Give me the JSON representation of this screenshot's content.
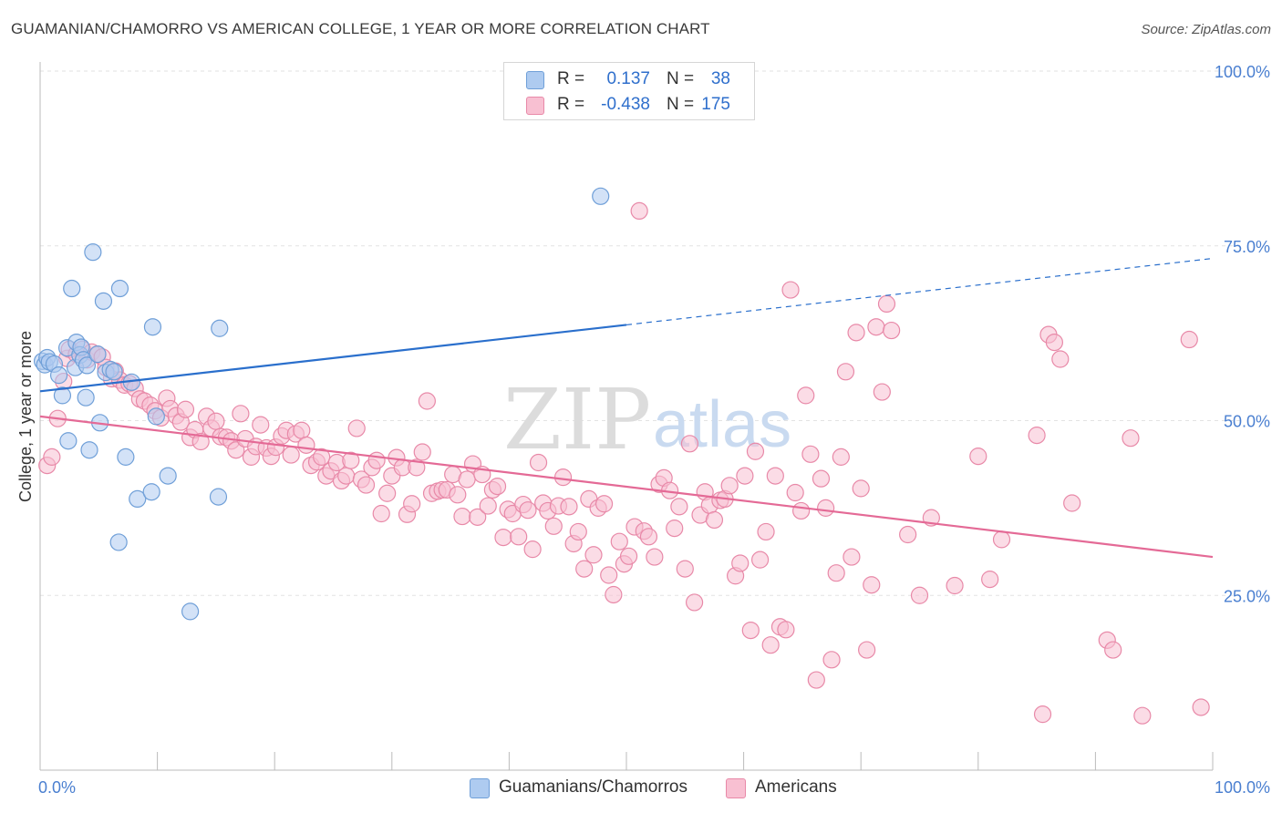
{
  "title": "GUAMANIAN/CHAMORRO VS AMERICAN COLLEGE, 1 YEAR OR MORE CORRELATION CHART",
  "source": "Source: ZipAtlas.com",
  "watermark": {
    "zip": "ZIP",
    "atlas": "atlas"
  },
  "legend_top": [
    {
      "r_label": "R =",
      "r_value": "0.137",
      "n_label": "N =",
      "n_value": "38",
      "color": "#aecbf0",
      "border": "#6f9fd8"
    },
    {
      "r_label": "R =",
      "r_value": "-0.438",
      "n_label": "N =",
      "n_value": "175",
      "color": "#f8c0d2",
      "border": "#e889a8"
    }
  ],
  "legend_bottom": [
    {
      "label": "Guamanians/Chamorros",
      "color": "#aecbf0",
      "border": "#6f9fd8"
    },
    {
      "label": "Americans",
      "color": "#f8c0d2",
      "border": "#e889a8"
    }
  ],
  "chart_data": {
    "type": "scatter",
    "ylabel": "College, 1 year or more",
    "xlim": [
      0,
      100
    ],
    "ylim": [
      0,
      100
    ],
    "x_tick_labels": {
      "left": "0.0%",
      "right": "100.0%"
    },
    "y_tick_labels": [
      {
        "value": 100,
        "label": "100.0%"
      },
      {
        "value": 75,
        "label": "75.0%"
      },
      {
        "value": 50,
        "label": "50.0%"
      },
      {
        "value": 25,
        "label": "25.0%"
      }
    ],
    "grid": true,
    "series": [
      {
        "name": "Guamanians/Chamorros",
        "color": "#6f9fd8",
        "fill": "#aecbf0",
        "line_color": "#2a6fcc",
        "trend": {
          "x0": 0,
          "y0": 54.2,
          "x1": 50,
          "y1": 63.7,
          "dash_to_x": 100,
          "dash_to_y": 73.2
        },
        "points": [
          [
            0.2,
            58.5
          ],
          [
            0.4,
            58.0
          ],
          [
            0.6,
            59.0
          ],
          [
            0.8,
            58.4
          ],
          [
            1.2,
            58.1
          ],
          [
            1.6,
            56.5
          ],
          [
            1.9,
            53.6
          ],
          [
            2.3,
            60.4
          ],
          [
            2.4,
            47.1
          ],
          [
            2.7,
            68.9
          ],
          [
            3.0,
            57.6
          ],
          [
            3.1,
            61.2
          ],
          [
            3.4,
            59.4
          ],
          [
            3.5,
            60.5
          ],
          [
            3.7,
            58.7
          ],
          [
            3.9,
            53.3
          ],
          [
            4.0,
            57.9
          ],
          [
            4.2,
            45.8
          ],
          [
            4.5,
            74.1
          ],
          [
            4.9,
            59.5
          ],
          [
            5.1,
            49.7
          ],
          [
            5.4,
            67.1
          ],
          [
            5.6,
            56.9
          ],
          [
            6.0,
            57.3
          ],
          [
            6.3,
            57.0
          ],
          [
            6.7,
            32.6
          ],
          [
            6.8,
            68.9
          ],
          [
            7.3,
            44.8
          ],
          [
            7.8,
            55.5
          ],
          [
            8.3,
            38.8
          ],
          [
            9.5,
            39.8
          ],
          [
            9.6,
            63.4
          ],
          [
            9.9,
            50.6
          ],
          [
            10.9,
            42.1
          ],
          [
            12.8,
            22.7
          ],
          [
            15.2,
            39.1
          ],
          [
            15.3,
            63.2
          ],
          [
            47.8,
            82.1
          ]
        ]
      },
      {
        "name": "Americans",
        "color": "#e889a8",
        "fill": "#f8c0d2",
        "line_color": "#e46a96",
        "trend": {
          "x0": 0,
          "y0": 50.6,
          "x1": 100,
          "y1": 30.5
        },
        "points": [
          [
            0.6,
            43.6
          ],
          [
            1.0,
            44.8
          ],
          [
            1.5,
            50.3
          ],
          [
            2.0,
            55.6
          ],
          [
            2.3,
            58.9
          ],
          [
            2.5,
            60.2
          ],
          [
            3.1,
            59.5
          ],
          [
            3.6,
            60.2
          ],
          [
            4.0,
            58.7
          ],
          [
            4.4,
            59.8
          ],
          [
            4.9,
            59.5
          ],
          [
            5.3,
            59.1
          ],
          [
            5.6,
            57.6
          ],
          [
            6.1,
            56.0
          ],
          [
            6.4,
            57.1
          ],
          [
            6.8,
            55.8
          ],
          [
            7.2,
            55.1
          ],
          [
            7.6,
            55.3
          ],
          [
            8.1,
            54.6
          ],
          [
            8.5,
            53.1
          ],
          [
            8.9,
            52.8
          ],
          [
            9.4,
            52.2
          ],
          [
            9.8,
            51.4
          ],
          [
            10.3,
            50.4
          ],
          [
            10.8,
            53.2
          ],
          [
            11.1,
            51.7
          ],
          [
            11.6,
            50.7
          ],
          [
            12.0,
            49.8
          ],
          [
            12.4,
            51.6
          ],
          [
            12.8,
            47.6
          ],
          [
            13.2,
            48.7
          ],
          [
            13.7,
            47.0
          ],
          [
            14.2,
            50.6
          ],
          [
            14.6,
            48.9
          ],
          [
            15.0,
            49.9
          ],
          [
            15.4,
            47.7
          ],
          [
            15.9,
            47.6
          ],
          [
            16.3,
            47.1
          ],
          [
            16.7,
            45.8
          ],
          [
            17.1,
            51.0
          ],
          [
            17.5,
            47.4
          ],
          [
            18.0,
            44.8
          ],
          [
            18.4,
            46.3
          ],
          [
            18.8,
            49.4
          ],
          [
            19.3,
            46.1
          ],
          [
            19.7,
            44.9
          ],
          [
            20.1,
            46.2
          ],
          [
            20.6,
            47.8
          ],
          [
            21.0,
            48.6
          ],
          [
            21.4,
            45.1
          ],
          [
            21.8,
            48.1
          ],
          [
            22.3,
            48.6
          ],
          [
            22.7,
            46.5
          ],
          [
            23.1,
            43.6
          ],
          [
            23.6,
            44.1
          ],
          [
            24.0,
            44.8
          ],
          [
            24.4,
            42.1
          ],
          [
            24.8,
            42.8
          ],
          [
            25.3,
            44.0
          ],
          [
            25.7,
            41.4
          ],
          [
            26.1,
            42.1
          ],
          [
            26.5,
            44.3
          ],
          [
            27.0,
            48.9
          ],
          [
            27.4,
            41.6
          ],
          [
            27.8,
            40.8
          ],
          [
            28.3,
            43.3
          ],
          [
            28.7,
            44.3
          ],
          [
            29.1,
            36.7
          ],
          [
            29.6,
            39.6
          ],
          [
            30.0,
            42.1
          ],
          [
            30.4,
            44.7
          ],
          [
            30.9,
            43.3
          ],
          [
            31.3,
            36.6
          ],
          [
            31.7,
            38.1
          ],
          [
            32.1,
            43.3
          ],
          [
            32.6,
            45.5
          ],
          [
            33.0,
            52.8
          ],
          [
            33.4,
            39.6
          ],
          [
            33.9,
            39.9
          ],
          [
            34.3,
            40.1
          ],
          [
            34.7,
            40.1
          ],
          [
            35.2,
            42.3
          ],
          [
            35.6,
            39.4
          ],
          [
            36.0,
            36.3
          ],
          [
            36.4,
            41.6
          ],
          [
            36.9,
            43.8
          ],
          [
            37.3,
            36.2
          ],
          [
            37.7,
            42.3
          ],
          [
            38.2,
            37.8
          ],
          [
            38.6,
            40.1
          ],
          [
            39.0,
            40.6
          ],
          [
            39.5,
            33.3
          ],
          [
            39.9,
            37.3
          ],
          [
            40.3,
            36.7
          ],
          [
            40.8,
            33.4
          ],
          [
            41.2,
            38.0
          ],
          [
            41.6,
            37.2
          ],
          [
            42.0,
            31.6
          ],
          [
            42.5,
            44.0
          ],
          [
            42.9,
            38.2
          ],
          [
            43.3,
            37.1
          ],
          [
            43.8,
            34.9
          ],
          [
            44.2,
            37.8
          ],
          [
            44.6,
            41.9
          ],
          [
            45.1,
            37.7
          ],
          [
            45.5,
            32.4
          ],
          [
            45.9,
            34.1
          ],
          [
            46.4,
            28.8
          ],
          [
            46.8,
            38.8
          ],
          [
            47.2,
            30.8
          ],
          [
            47.6,
            37.5
          ],
          [
            48.1,
            38.1
          ],
          [
            48.5,
            27.9
          ],
          [
            48.9,
            25.1
          ],
          [
            49.4,
            32.7
          ],
          [
            49.8,
            29.5
          ],
          [
            50.2,
            30.6
          ],
          [
            50.7,
            34.8
          ],
          [
            51.1,
            80.0
          ],
          [
            51.5,
            34.2
          ],
          [
            51.9,
            33.4
          ],
          [
            52.4,
            30.5
          ],
          [
            52.8,
            40.9
          ],
          [
            53.2,
            41.8
          ],
          [
            53.7,
            40.0
          ],
          [
            54.1,
            34.6
          ],
          [
            54.5,
            37.7
          ],
          [
            55.0,
            28.8
          ],
          [
            55.4,
            46.7
          ],
          [
            55.8,
            24.0
          ],
          [
            56.3,
            36.5
          ],
          [
            56.7,
            39.8
          ],
          [
            57.1,
            37.9
          ],
          [
            57.5,
            35.8
          ],
          [
            58.0,
            38.6
          ],
          [
            58.4,
            38.8
          ],
          [
            58.8,
            40.7
          ],
          [
            59.3,
            27.8
          ],
          [
            59.7,
            29.6
          ],
          [
            60.1,
            42.1
          ],
          [
            60.6,
            20.0
          ],
          [
            61.0,
            45.6
          ],
          [
            61.4,
            30.1
          ],
          [
            61.9,
            34.1
          ],
          [
            62.3,
            17.9
          ],
          [
            62.7,
            42.1
          ],
          [
            63.1,
            20.5
          ],
          [
            63.6,
            20.1
          ],
          [
            64.0,
            68.7
          ],
          [
            64.4,
            39.7
          ],
          [
            64.9,
            37.1
          ],
          [
            65.3,
            53.6
          ],
          [
            65.7,
            45.2
          ],
          [
            66.2,
            12.9
          ],
          [
            66.6,
            41.7
          ],
          [
            67.0,
            37.5
          ],
          [
            67.5,
            15.8
          ],
          [
            67.9,
            28.2
          ],
          [
            68.3,
            44.8
          ],
          [
            68.7,
            57.0
          ],
          [
            69.2,
            30.5
          ],
          [
            69.6,
            62.6
          ],
          [
            70.0,
            40.3
          ],
          [
            70.5,
            17.2
          ],
          [
            70.9,
            26.5
          ],
          [
            71.3,
            63.4
          ],
          [
            71.8,
            54.1
          ],
          [
            72.2,
            66.7
          ],
          [
            72.6,
            62.9
          ],
          [
            74.0,
            33.7
          ],
          [
            75.0,
            25.0
          ],
          [
            80.0,
            44.9
          ],
          [
            85.0,
            47.9
          ],
          [
            88.0,
            38.2
          ],
          [
            93.0,
            47.5
          ],
          [
            98.0,
            61.6
          ],
          [
            99.0,
            9.0
          ],
          [
            85.5,
            8.0
          ],
          [
            94.0,
            7.8
          ],
          [
            91.0,
            18.6
          ],
          [
            91.5,
            17.2
          ],
          [
            87.0,
            58.8
          ],
          [
            86.0,
            62.3
          ],
          [
            86.5,
            61.2
          ],
          [
            78.0,
            26.4
          ],
          [
            76.0,
            36.1
          ],
          [
            81.0,
            27.3
          ],
          [
            82.0,
            33.0
          ]
        ]
      }
    ]
  }
}
